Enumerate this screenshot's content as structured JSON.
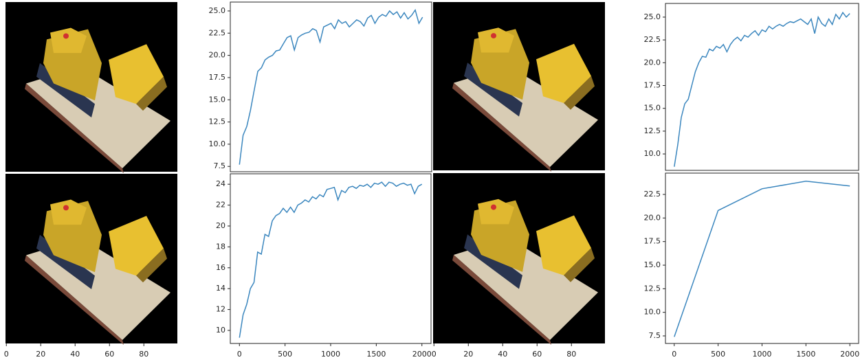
{
  "chart_data": [
    {
      "type": "image"
    },
    {
      "type": "line",
      "color": "#3a86be",
      "xlim": [
        -100,
        2100
      ],
      "ylim": [
        6.9,
        26.0
      ],
      "yticks": [
        {
          "value": 7.5,
          "label": "7.5"
        },
        {
          "value": 10,
          "label": "10.0"
        },
        {
          "value": 12.5,
          "label": "12.5"
        },
        {
          "value": 15,
          "label": "15.0"
        },
        {
          "value": 17.5,
          "label": "17.5"
        },
        {
          "value": 20,
          "label": "20.0"
        },
        {
          "value": 22.5,
          "label": "22.5"
        },
        {
          "value": 25,
          "label": "25.0"
        }
      ],
      "x": [
        0,
        40,
        80,
        120,
        160,
        200,
        240,
        280,
        320,
        360,
        400,
        440,
        480,
        520,
        560,
        600,
        640,
        680,
        720,
        760,
        800,
        840,
        880,
        920,
        960,
        1000,
        1040,
        1080,
        1120,
        1160,
        1200,
        1240,
        1280,
        1320,
        1360,
        1400,
        1440,
        1480,
        1520,
        1560,
        1600,
        1640,
        1680,
        1720,
        1760,
        1800,
        1840,
        1880,
        1920,
        1960,
        2000
      ],
      "values": [
        7.7,
        11.0,
        12.0,
        13.8,
        16.0,
        18.2,
        18.6,
        19.5,
        19.8,
        20.0,
        20.5,
        20.6,
        21.3,
        22.0,
        22.2,
        20.6,
        22.0,
        22.3,
        22.5,
        22.6,
        23.0,
        22.8,
        21.5,
        23.2,
        23.4,
        23.6,
        23.0,
        24.0,
        23.6,
        23.8,
        23.2,
        23.6,
        24.0,
        23.8,
        23.3,
        24.2,
        24.5,
        23.6,
        24.3,
        24.6,
        24.4,
        25.0,
        24.6,
        24.9,
        24.2,
        24.8,
        24.1,
        24.5,
        25.1,
        23.6,
        24.3
      ]
    },
    {
      "type": "image"
    },
    {
      "type": "line",
      "color": "#3a86be",
      "xlim": [
        -100,
        2100
      ],
      "ylim": [
        8.2,
        26.5
      ],
      "yticks": [
        {
          "value": 10,
          "label": "10.0"
        },
        {
          "value": 12.5,
          "label": "12.5"
        },
        {
          "value": 15,
          "label": "15.0"
        },
        {
          "value": 17.5,
          "label": "17.5"
        },
        {
          "value": 20,
          "label": "20.0"
        },
        {
          "value": 22.5,
          "label": "22.5"
        },
        {
          "value": 25,
          "label": "25.0"
        }
      ],
      "x": [
        0,
        40,
        80,
        120,
        160,
        200,
        240,
        280,
        320,
        360,
        400,
        440,
        480,
        520,
        560,
        600,
        640,
        680,
        720,
        760,
        800,
        840,
        880,
        920,
        960,
        1000,
        1040,
        1080,
        1120,
        1160,
        1200,
        1240,
        1280,
        1320,
        1360,
        1400,
        1440,
        1480,
        1520,
        1560,
        1600,
        1640,
        1680,
        1720,
        1760,
        1800,
        1840,
        1880,
        1920,
        1960,
        2000
      ],
      "values": [
        8.6,
        11.0,
        14.0,
        15.5,
        16.0,
        17.5,
        19.0,
        20.0,
        20.7,
        20.6,
        21.5,
        21.3,
        21.8,
        21.6,
        22.0,
        21.2,
        22.0,
        22.5,
        22.8,
        22.4,
        23.0,
        22.8,
        23.2,
        23.5,
        23.0,
        23.6,
        23.4,
        24.0,
        23.7,
        24.0,
        24.2,
        24.0,
        24.3,
        24.5,
        24.4,
        24.6,
        24.8,
        24.5,
        24.2,
        24.8,
        23.2,
        25.0,
        24.3,
        24.0,
        24.8,
        24.2,
        25.3,
        24.8,
        25.5,
        25.0,
        25.4
      ]
    },
    {
      "type": "image",
      "xlim": [
        -0.5,
        99.5
      ],
      "xticks": [
        0,
        20,
        40,
        60,
        80
      ]
    },
    {
      "type": "line",
      "color": "#3a86be",
      "xlim": [
        -100,
        2100
      ],
      "ylim": [
        8.75,
        25.0
      ],
      "xticks": [
        0,
        500,
        1000,
        1500,
        2000
      ],
      "yticks": [
        10,
        12,
        14,
        16,
        18,
        20,
        22,
        24
      ],
      "x": [
        0,
        40,
        80,
        120,
        160,
        200,
        240,
        280,
        320,
        360,
        400,
        440,
        480,
        520,
        560,
        600,
        640,
        680,
        720,
        760,
        800,
        840,
        880,
        920,
        960,
        1000,
        1040,
        1080,
        1120,
        1160,
        1200,
        1240,
        1280,
        1320,
        1360,
        1400,
        1440,
        1480,
        1520,
        1560,
        1600,
        1640,
        1680,
        1720,
        1760,
        1800,
        1840,
        1880,
        1920,
        1960,
        2000
      ],
      "values": [
        9.3,
        11.5,
        12.5,
        14.0,
        14.6,
        17.5,
        17.3,
        19.2,
        19.0,
        20.5,
        21.0,
        21.2,
        21.7,
        21.3,
        21.8,
        21.3,
        22.0,
        22.2,
        22.5,
        22.3,
        22.8,
        22.6,
        23.0,
        22.8,
        23.5,
        23.6,
        23.7,
        22.5,
        23.4,
        23.2,
        23.7,
        23.8,
        23.6,
        23.9,
        23.8,
        24.0,
        23.7,
        24.1,
        24.0,
        24.2,
        23.8,
        24.2,
        24.1,
        23.8,
        24.0,
        24.1,
        23.9,
        24.0,
        23.1,
        23.8,
        24.0
      ]
    },
    {
      "type": "image",
      "xlim": [
        -0.5,
        99.5
      ],
      "xticks": [
        0,
        20,
        40,
        60,
        80
      ]
    },
    {
      "type": "line",
      "color": "#3a86be",
      "xlim": [
        -100,
        2100
      ],
      "ylim": [
        6.7,
        24.76
      ],
      "xticks": [
        0,
        500,
        1000,
        1500,
        2000
      ],
      "yticks": [
        7.5,
        {
          "value": 10,
          "label": "10.0"
        },
        12.5,
        {
          "value": 15,
          "label": "15.0"
        },
        17.5,
        {
          "value": 20,
          "label": "20.0"
        },
        22.5
      ],
      "x": [
        0,
        500,
        1000,
        1500,
        2000
      ],
      "values": [
        7.4,
        20.8,
        23.1,
        23.9,
        23.4
      ]
    }
  ]
}
